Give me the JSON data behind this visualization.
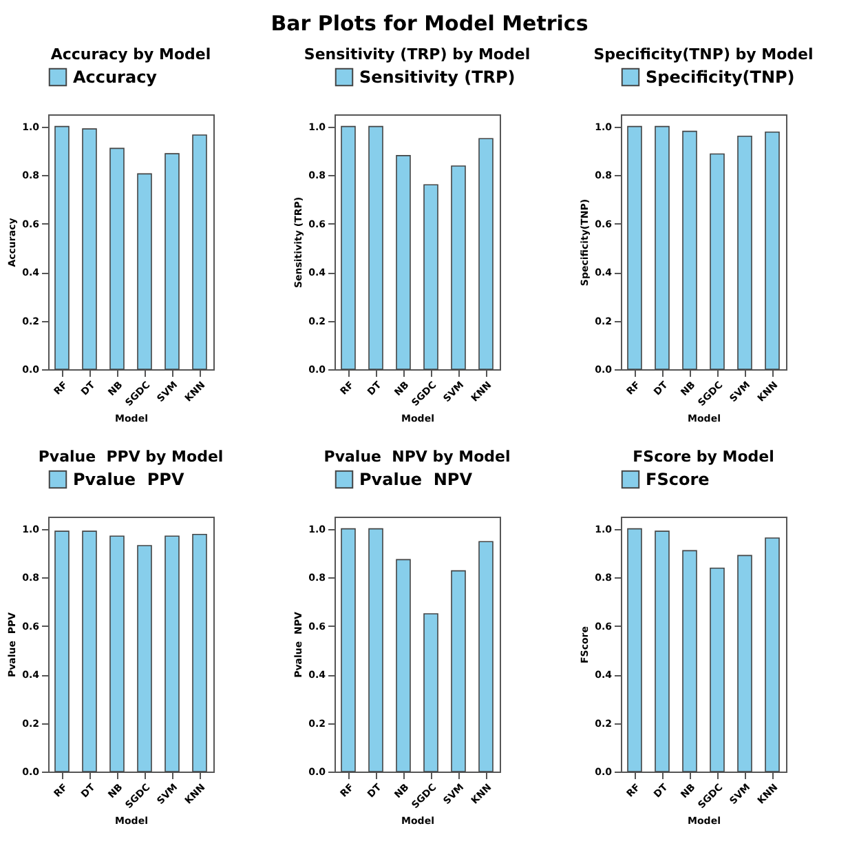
{
  "chart_data": [
    {
      "type": "other",
      "title": "Bar Plots for Model Metrics"
    },
    {
      "type": "bar",
      "title": "Accuracy by Model",
      "xlabel": "Model",
      "ylabel": "Accuracy",
      "categories": [
        "RF",
        "DT",
        "NB",
        "SGDC",
        "SVM",
        "KNN"
      ],
      "series": [
        {
          "name": "Accuracy",
          "color": "#87ceeb",
          "values": [
            1.0,
            0.99,
            0.91,
            0.805,
            0.888,
            0.965
          ]
        }
      ],
      "ylim": [
        0,
        1.05
      ],
      "yticks": [
        {
          "value": 0,
          "label": "0.0"
        },
        {
          "value": 0.2,
          "label": "0.2"
        },
        {
          "value": 0.4,
          "label": "0.4"
        },
        {
          "value": 0.6,
          "label": "0.6"
        },
        {
          "value": 0.8,
          "label": "0.8"
        },
        {
          "value": 1,
          "label": "1.0"
        }
      ],
      "legend": "top"
    },
    {
      "type": "bar",
      "title": "Sensitivity (TRP) by Model",
      "xlabel": "Model",
      "ylabel": "Sensitivity (TRP)",
      "categories": [
        "RF",
        "DT",
        "NB",
        "SGDC",
        "SVM",
        "KNN"
      ],
      "series": [
        {
          "name": "Sensitivity (TRP)",
          "color": "#87ceeb",
          "values": [
            1.0,
            1.0,
            0.88,
            0.76,
            0.837,
            0.95
          ]
        }
      ],
      "ylim": [
        0,
        1.05
      ],
      "yticks": [
        {
          "value": 0,
          "label": "0.0"
        },
        {
          "value": 0.2,
          "label": "0.2"
        },
        {
          "value": 0.4,
          "label": "0.4"
        },
        {
          "value": 0.6,
          "label": "0.6"
        },
        {
          "value": 0.8,
          "label": "0.8"
        },
        {
          "value": 1,
          "label": "1.0"
        }
      ],
      "legend": "top"
    },
    {
      "type": "bar",
      "title": "Specificity(TNP) by Model",
      "xlabel": "Model",
      "ylabel": "Specificity(TNP)",
      "categories": [
        "RF",
        "DT",
        "NB",
        "SGDC",
        "SVM",
        "KNN"
      ],
      "series": [
        {
          "name": "Specificity(TNP)",
          "color": "#87ceeb",
          "values": [
            1.0,
            1.0,
            0.98,
            0.887,
            0.96,
            0.977
          ]
        }
      ],
      "ylim": [
        0,
        1.05
      ],
      "yticks": [
        {
          "value": 0,
          "label": "0.0"
        },
        {
          "value": 0.2,
          "label": "0.2"
        },
        {
          "value": 0.4,
          "label": "0.4"
        },
        {
          "value": 0.6,
          "label": "0.6"
        },
        {
          "value": 0.8,
          "label": "0.8"
        },
        {
          "value": 1,
          "label": "1.0"
        }
      ],
      "legend": "top"
    },
    {
      "type": "bar",
      "title": "Pvalue  PPV by Model",
      "xlabel": "Model",
      "ylabel": "Pvalue  PPV",
      "categories": [
        "RF",
        "DT",
        "NB",
        "SGDC",
        "SVM",
        "KNN"
      ],
      "series": [
        {
          "name": "Pvalue  PPV",
          "color": "#87ceeb",
          "values": [
            0.99,
            0.99,
            0.97,
            0.931,
            0.97,
            0.977
          ]
        }
      ],
      "ylim": [
        0,
        1.05
      ],
      "yticks": [
        {
          "value": 0,
          "label": "0.0"
        },
        {
          "value": 0.2,
          "label": "0.2"
        },
        {
          "value": 0.4,
          "label": "0.4"
        },
        {
          "value": 0.6,
          "label": "0.6"
        },
        {
          "value": 0.8,
          "label": "0.8"
        },
        {
          "value": 1,
          "label": "1.0"
        }
      ],
      "legend": "top"
    },
    {
      "type": "bar",
      "title": "Pvalue  NPV by Model",
      "xlabel": "Model",
      "ylabel": "Pvalue  NPV",
      "categories": [
        "RF",
        "DT",
        "NB",
        "SGDC",
        "SVM",
        "KNN"
      ],
      "series": [
        {
          "name": "Pvalue  NPV",
          "color": "#87ceeb",
          "values": [
            1.0,
            1.0,
            0.873,
            0.65,
            0.827,
            0.947
          ]
        }
      ],
      "ylim": [
        0,
        1.05
      ],
      "yticks": [
        {
          "value": 0,
          "label": "0.0"
        },
        {
          "value": 0.2,
          "label": "0.2"
        },
        {
          "value": 0.4,
          "label": "0.4"
        },
        {
          "value": 0.6,
          "label": "0.6"
        },
        {
          "value": 0.8,
          "label": "0.8"
        },
        {
          "value": 1,
          "label": "1.0"
        }
      ],
      "legend": "top"
    },
    {
      "type": "bar",
      "title": "FScore by Model",
      "xlabel": "Model",
      "ylabel": "FScore",
      "categories": [
        "RF",
        "DT",
        "NB",
        "SGDC",
        "SVM",
        "KNN"
      ],
      "series": [
        {
          "name": "FScore",
          "color": "#87ceeb",
          "values": [
            1.0,
            0.99,
            0.91,
            0.838,
            0.89,
            0.962
          ]
        }
      ],
      "ylim": [
        0,
        1.05
      ],
      "yticks": [
        {
          "value": 0,
          "label": "0.0"
        },
        {
          "value": 0.2,
          "label": "0.2"
        },
        {
          "value": 0.4,
          "label": "0.4"
        },
        {
          "value": 0.6,
          "label": "0.6"
        },
        {
          "value": 0.8,
          "label": "0.8"
        },
        {
          "value": 1,
          "label": "1.0"
        }
      ],
      "legend": "top"
    }
  ]
}
